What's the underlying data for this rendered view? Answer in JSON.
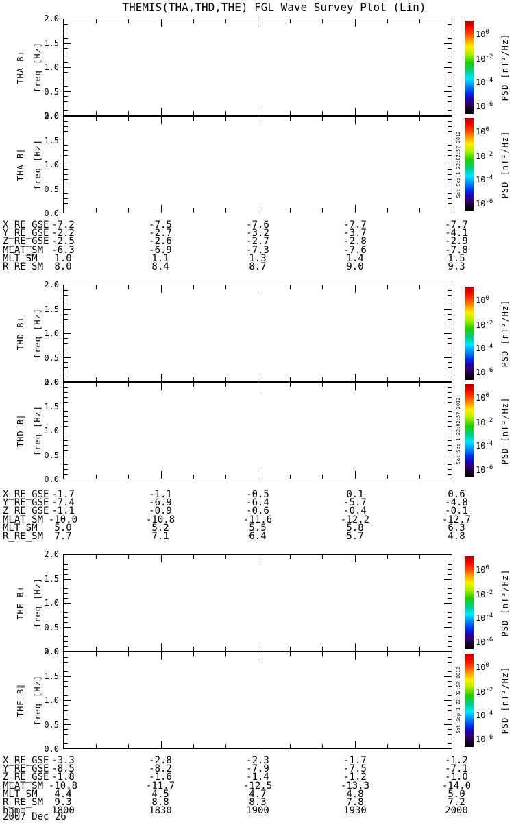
{
  "title": "THEMIS(THA,THD,THE) FGL Wave Survey Plot (Lin)",
  "date_label": "2007 Dec 26",
  "chart_data": {
    "type": "heatmap",
    "subtype": "wave-power-spectrogram",
    "note": "all six spectrogram panels are blank (no PSD values above threshold rendered)",
    "x_axis": {
      "label": "hhmm",
      "tick_labels": [
        "1800",
        "1830",
        "1900",
        "1930",
        "2000"
      ],
      "range_minutes": [
        0,
        120
      ],
      "minor_tick_minutes": 10
    },
    "y_axis": {
      "label": "freq [Hz]",
      "tick_labels": [
        "2.0",
        "1.5",
        "1.0",
        "0.5",
        "0.0"
      ],
      "range": [
        0.0,
        2.0
      ],
      "minor_step": 0.1
    },
    "colorbar": {
      "label": "PSD [nT²/Hz]",
      "ticks": [
        {
          "base": "10",
          "exp": "0",
          "frac": 0.15
        },
        {
          "base": "10",
          "exp": "-2",
          "frac": 0.4
        },
        {
          "base": "10",
          "exp": "-4",
          "frac": 0.64
        },
        {
          "base": "10",
          "exp": "-6",
          "frac": 0.89
        }
      ],
      "gradient": [
        "#aa0000 0%",
        "#ee0000 6%",
        "#ff4400 14%",
        "#ffaa00 22%",
        "#ffee00 28%",
        "#aaee00 36%",
        "#22cc00 45%",
        "#00cc88 54%",
        "#00e6ff 62%",
        "#0088ff 70%",
        "#0033ee 77%",
        "#2200aa 84%",
        "#330066 89%",
        "#110022 95%",
        "#000000 100%"
      ]
    },
    "panels": [
      {
        "id": "tha-bperp",
        "label": "THA B⊥",
        "ylabel": "freq [Hz]",
        "timestamp": null
      },
      {
        "id": "tha-bpar",
        "label": "THA B∥",
        "ylabel": "freq [Hz]",
        "timestamp": "Sat Sep 1 22:02:57 2012"
      },
      {
        "id": "thd-bperp",
        "label": "THD B⊥",
        "ylabel": "freq [Hz]",
        "timestamp": null
      },
      {
        "id": "thd-bpar",
        "label": "THD B∥",
        "ylabel": "freq [Hz]",
        "timestamp": "Sat Sep 1 22:02:57 2012"
      },
      {
        "id": "the-bperp",
        "label": "THE B⊥",
        "ylabel": "freq [Hz]",
        "timestamp": null
      },
      {
        "id": "the-bpar",
        "label": "THE B∥",
        "ylabel": "freq [Hz]",
        "timestamp": "Sat Sep 1 22:02:57 2012"
      }
    ],
    "ephemeris_blocks": [
      {
        "spacecraft": "THA",
        "rows": [
          {
            "label": "X_RE_GSE",
            "values": [
              "-7.2",
              "-7.5",
              "-7.6",
              "-7.7",
              "-7.7"
            ]
          },
          {
            "label": "Y_RE_GSE",
            "values": [
              "-2.2",
              "-2.7",
              "-3.2",
              "-3.7",
              "-4.1"
            ]
          },
          {
            "label": "Z_RE_GSE",
            "values": [
              "-2.5",
              "-2.6",
              "-2.7",
              "-2.8",
              "-2.9"
            ]
          },
          {
            "label": "MLAT_SM",
            "values": [
              "-6.3",
              "-6.9",
              "-7.3",
              "-7.6",
              "-7.8"
            ]
          },
          {
            "label": "MLT_SM",
            "values": [
              "1.0",
              "1.1",
              "1.3",
              "1.4",
              "1.5"
            ]
          },
          {
            "label": "R_RE_SM",
            "values": [
              "8.0",
              "8.4",
              "8.7",
              "9.0",
              "9.3"
            ]
          }
        ]
      },
      {
        "spacecraft": "THD",
        "rows": [
          {
            "label": "X_RE_GSE",
            "values": [
              "-1.7",
              "-1.1",
              "-0.5",
              "0.1",
              "0.6"
            ]
          },
          {
            "label": "Y_RE_GSE",
            "values": [
              "-7.4",
              "-6.9",
              "-6.4",
              "-5.7",
              "-4.8"
            ]
          },
          {
            "label": "Z_RE_GSE",
            "values": [
              "-1.1",
              "-0.9",
              "-0.6",
              "-0.4",
              "-0.1"
            ]
          },
          {
            "label": "MLAT_SM",
            "values": [
              "-10.0",
              "-10.8",
              "-11.6",
              "-12.2",
              "-12.7"
            ]
          },
          {
            "label": "MLT_SM",
            "values": [
              "5.0",
              "5.2",
              "5.5",
              "5.8",
              "6.3"
            ]
          },
          {
            "label": "R_RE_SM",
            "values": [
              "7.7",
              "7.1",
              "6.4",
              "5.7",
              "4.8"
            ]
          }
        ]
      },
      {
        "spacecraft": "THE",
        "rows": [
          {
            "label": "X_RE_GSE",
            "values": [
              "-3.3",
              "-2.8",
              "-2.3",
              "-1.7",
              "-1.2"
            ]
          },
          {
            "label": "Y_RE_GSE",
            "values": [
              "-8.5",
              "-8.2",
              "-7.9",
              "-7.5",
              "-7.1"
            ]
          },
          {
            "label": "Z_RE_GSE",
            "values": [
              "-1.8",
              "-1.6",
              "-1.4",
              "-1.2",
              "-1.0"
            ]
          },
          {
            "label": "MLAT_SM",
            "values": [
              "-10.8",
              "-11.7",
              "-12.5",
              "-13.3",
              "-14.0"
            ]
          },
          {
            "label": "MLT_SM",
            "values": [
              "4.4",
              "4.5",
              "4.7",
              "4.8",
              "5.0"
            ]
          },
          {
            "label": "R_RE_SM",
            "values": [
              "9.3",
              "8.8",
              "8.3",
              "7.8",
              "7.2"
            ]
          },
          {
            "label": "hhmm",
            "values": [
              "1800",
              "1830",
              "1900",
              "1930",
              "2000"
            ]
          }
        ]
      }
    ]
  }
}
